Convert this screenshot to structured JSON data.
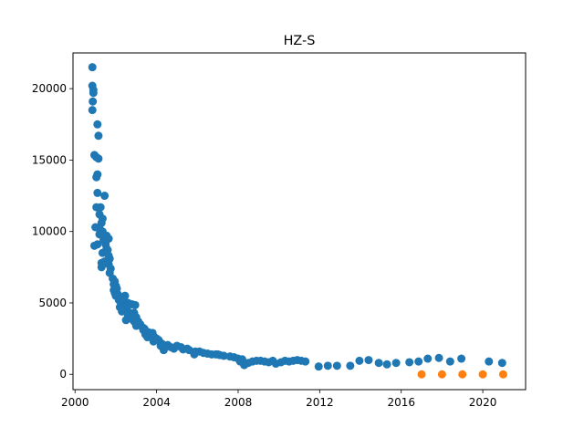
{
  "chart_data": {
    "type": "scatter",
    "title": "HZ-S",
    "xlabel": "",
    "ylabel": "",
    "xlim": [
      1999.9,
      2022.1
    ],
    "ylim": [
      -1070,
      22500
    ],
    "xticks": [
      2000,
      2004,
      2008,
      2012,
      2016,
      2020
    ],
    "yticks": [
      0,
      5000,
      10000,
      15000,
      20000
    ],
    "grid": false,
    "series": [
      {
        "color": "#1f77b4",
        "points": [
          [
            2000.85,
            21500
          ],
          [
            2000.85,
            20200
          ],
          [
            2000.9,
            19900
          ],
          [
            2000.9,
            19700
          ],
          [
            2000.87,
            19100
          ],
          [
            2000.85,
            18500
          ],
          [
            2001.1,
            17500
          ],
          [
            2001.15,
            16700
          ],
          [
            2000.95,
            15350
          ],
          [
            2001.05,
            15200
          ],
          [
            2001.15,
            15100
          ],
          [
            2001.1,
            14000
          ],
          [
            2001.05,
            13800
          ],
          [
            2001.1,
            12700
          ],
          [
            2001.45,
            12500
          ],
          [
            2001.05,
            11700
          ],
          [
            2001.25,
            11700
          ],
          [
            2001.2,
            11200
          ],
          [
            2001.35,
            10900
          ],
          [
            2001.3,
            10600
          ],
          [
            2001.0,
            10300
          ],
          [
            2001.2,
            10200
          ],
          [
            2001.35,
            10000
          ],
          [
            2001.2,
            9800
          ],
          [
            2001.55,
            9700
          ],
          [
            2001.65,
            9500
          ],
          [
            2001.4,
            9400
          ],
          [
            2001.1,
            9100
          ],
          [
            2000.95,
            9000
          ],
          [
            2001.5,
            9100
          ],
          [
            2001.55,
            8800
          ],
          [
            2001.6,
            8700
          ],
          [
            2001.35,
            8500
          ],
          [
            2001.65,
            8300
          ],
          [
            2001.7,
            8100
          ],
          [
            2001.3,
            7800
          ],
          [
            2001.45,
            7900
          ],
          [
            2001.65,
            7700
          ],
          [
            2001.3,
            7500
          ],
          [
            2001.75,
            7400
          ],
          [
            2001.7,
            7100
          ],
          [
            2001.85,
            6700
          ],
          [
            2001.95,
            6500
          ],
          [
            2001.9,
            6300
          ],
          [
            2002.0,
            6200
          ],
          [
            2002.05,
            6000
          ],
          [
            2001.9,
            5900
          ],
          [
            2001.95,
            5700
          ],
          [
            2002.1,
            5600
          ],
          [
            2002.0,
            5500
          ],
          [
            2002.2,
            5400
          ],
          [
            2002.3,
            5300
          ],
          [
            2002.45,
            5500
          ],
          [
            2002.15,
            5200
          ],
          [
            2002.25,
            5000
          ],
          [
            2002.35,
            5100
          ],
          [
            2002.6,
            5000
          ],
          [
            2002.8,
            4900
          ],
          [
            2002.95,
            4850
          ],
          [
            2002.2,
            4700
          ],
          [
            2002.4,
            4600
          ],
          [
            2002.55,
            4500
          ],
          [
            2002.3,
            4400
          ],
          [
            2002.7,
            4300
          ],
          [
            2002.8,
            4200
          ],
          [
            2002.9,
            4300
          ],
          [
            2002.6,
            4100
          ],
          [
            2003.0,
            4000
          ],
          [
            2002.75,
            3900
          ],
          [
            2002.5,
            3800
          ],
          [
            2002.9,
            3700
          ],
          [
            2003.1,
            3700
          ],
          [
            2003.2,
            3500
          ],
          [
            2003.0,
            3400
          ],
          [
            2003.3,
            3300
          ],
          [
            2003.4,
            3200
          ],
          [
            2003.35,
            3100
          ],
          [
            2003.5,
            3000
          ],
          [
            2003.6,
            2950
          ],
          [
            2003.8,
            2900
          ],
          [
            2003.45,
            2800
          ],
          [
            2003.7,
            2700
          ],
          [
            2003.55,
            2600
          ],
          [
            2003.9,
            2600
          ],
          [
            2004.0,
            2500
          ],
          [
            2004.1,
            2400
          ],
          [
            2003.85,
            2300
          ],
          [
            2004.2,
            2200
          ],
          [
            2004.3,
            2100
          ],
          [
            2004.55,
            2050
          ],
          [
            2004.2,
            2000
          ],
          [
            2004.7,
            1900
          ],
          [
            2004.35,
            1700
          ],
          [
            2005.0,
            2000
          ],
          [
            2005.2,
            1900
          ],
          [
            2004.85,
            1800
          ],
          [
            2005.3,
            1750
          ],
          [
            2005.6,
            1700
          ],
          [
            2005.5,
            1800
          ],
          [
            2005.9,
            1600
          ],
          [
            2006.1,
            1600
          ],
          [
            2005.85,
            1400
          ],
          [
            2006.3,
            1500
          ],
          [
            2006.5,
            1450
          ],
          [
            2006.7,
            1400
          ],
          [
            2006.9,
            1400
          ],
          [
            2007.1,
            1350
          ],
          [
            2007.3,
            1300
          ],
          [
            2007.0,
            1400
          ],
          [
            2007.6,
            1250
          ],
          [
            2007.8,
            1200
          ],
          [
            2008.0,
            1100
          ],
          [
            2008.2,
            1050
          ],
          [
            2008.1,
            900
          ],
          [
            2008.3,
            650
          ],
          [
            2008.5,
            800
          ],
          [
            2008.7,
            900
          ],
          [
            2008.9,
            950
          ],
          [
            2009.1,
            950
          ],
          [
            2009.3,
            900
          ],
          [
            2009.5,
            850
          ],
          [
            2009.7,
            950
          ],
          [
            2009.85,
            750
          ],
          [
            2010.1,
            850
          ],
          [
            2010.3,
            950
          ],
          [
            2010.5,
            900
          ],
          [
            2010.7,
            950
          ],
          [
            2010.9,
            1000
          ],
          [
            2011.1,
            950
          ],
          [
            2011.3,
            900
          ],
          [
            2011.95,
            550
          ],
          [
            2012.4,
            600
          ],
          [
            2012.85,
            600
          ],
          [
            2013.5,
            600
          ],
          [
            2013.95,
            950
          ],
          [
            2014.4,
            1000
          ],
          [
            2014.9,
            800
          ],
          [
            2015.3,
            700
          ],
          [
            2015.75,
            800
          ],
          [
            2016.4,
            850
          ],
          [
            2016.85,
            900
          ],
          [
            2017.3,
            1100
          ],
          [
            2017.85,
            1150
          ],
          [
            2018.4,
            900
          ],
          [
            2018.95,
            1100
          ],
          [
            2020.3,
            900
          ],
          [
            2020.95,
            800
          ]
        ]
      },
      {
        "color": "#ff7f0e",
        "points": [
          [
            2017.0,
            0
          ],
          [
            2018.0,
            0
          ],
          [
            2019.0,
            0
          ],
          [
            2020.0,
            0
          ],
          [
            2021.0,
            0
          ]
        ]
      }
    ]
  }
}
